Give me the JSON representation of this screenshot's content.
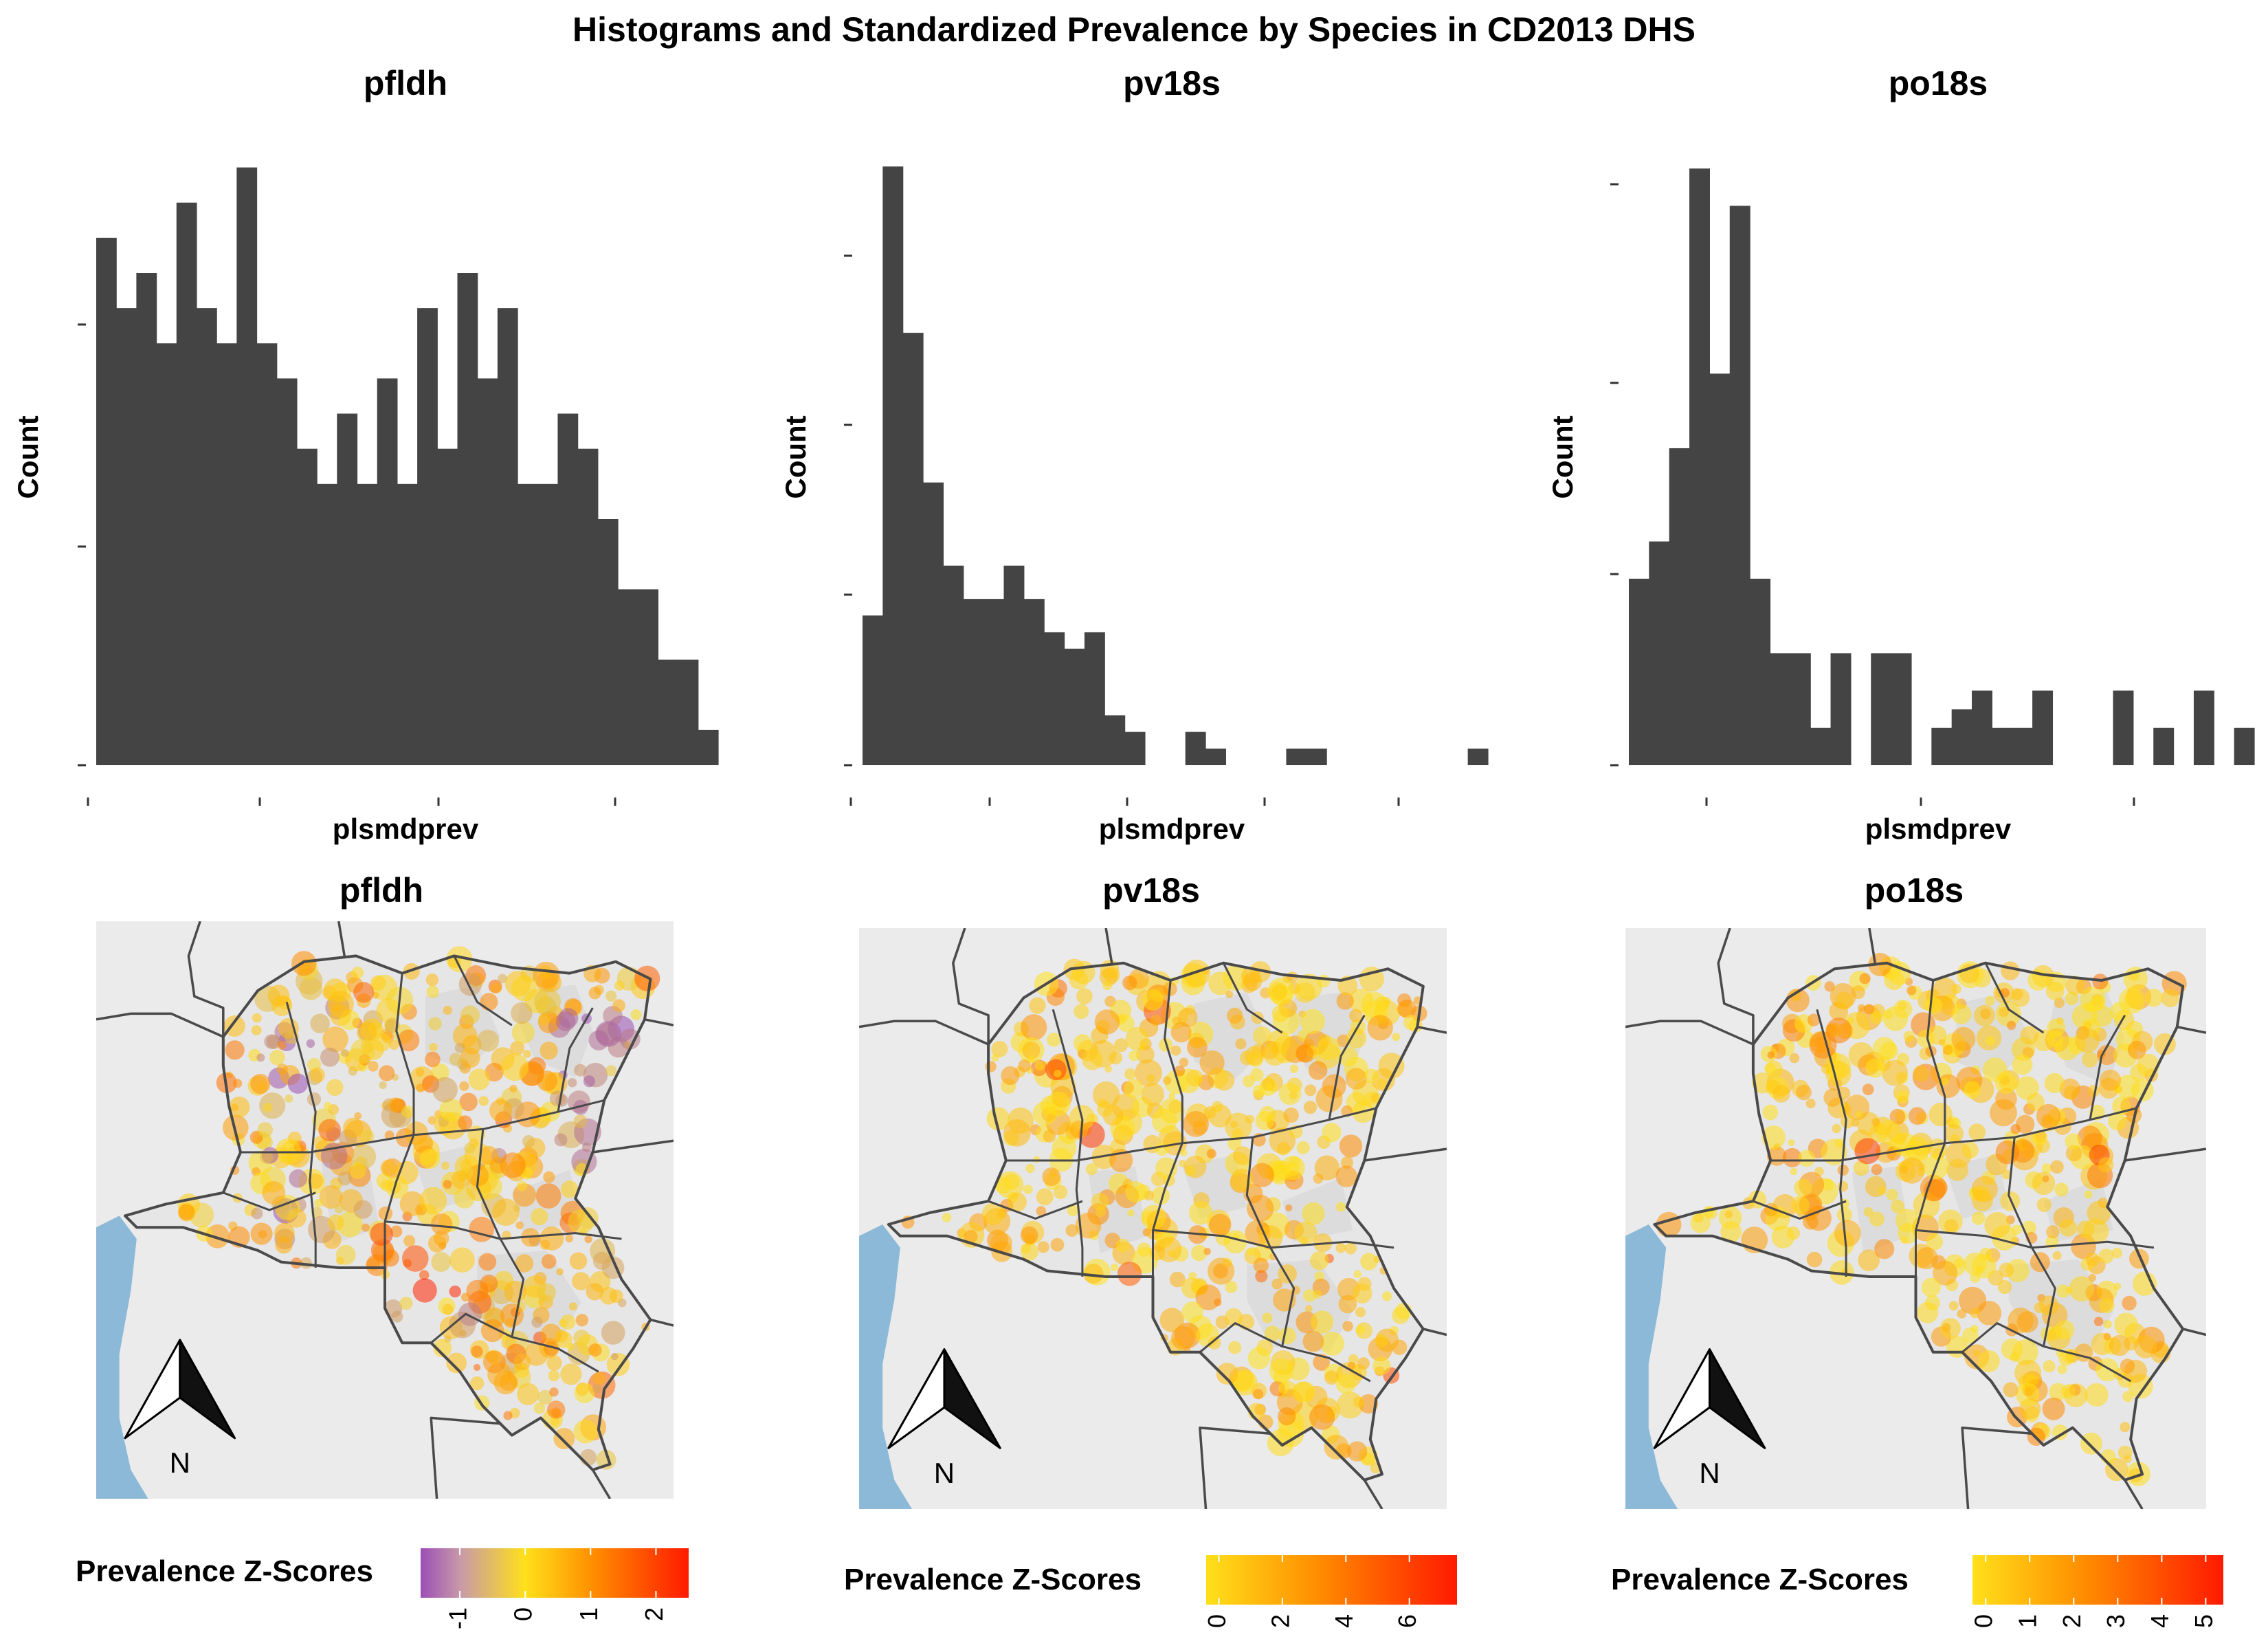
{
  "title": "Histograms and Standardized Prevalence by Species in CD2013 DHS",
  "north_label": "N",
  "colors": {
    "bar": "#444444",
    "ocean": "#8db9d8",
    "background": "#ebebeb",
    "province_fill": "#dcdcdc",
    "border": "#4a4a4a",
    "z_low": "#9b4fb5",
    "z_mid": "#ffe01a",
    "z_high": "#ff1a00"
  },
  "chart_data": [
    {
      "type": "bar",
      "title": "pfldh",
      "xlabel": "plsmdprev",
      "ylabel": "Count",
      "values": [
        15,
        13,
        14,
        12,
        16,
        13,
        12,
        17,
        12,
        11,
        9,
        8,
        10,
        8,
        11,
        8,
        13,
        9,
        14,
        11,
        13,
        8,
        8,
        10,
        9,
        7,
        5,
        5,
        3,
        3,
        1
      ],
      "ylim": [
        0,
        17.5
      ],
      "x_tick_count": 4,
      "y_tick_count": 3,
      "grid": false
    },
    {
      "type": "bar",
      "title": "pv18s",
      "xlabel": "plsmdprev",
      "ylabel": "Count",
      "values": [
        9,
        36,
        26,
        17,
        12,
        10,
        10,
        12,
        10,
        8,
        7,
        8,
        3,
        2,
        0,
        0,
        2,
        1,
        0,
        0,
        0,
        1,
        1,
        0,
        0,
        0,
        0,
        0,
        0,
        0,
        1
      ],
      "ylim": [
        0,
        37
      ],
      "x_tick_count": 5,
      "y_tick_count": 4,
      "grid": false
    },
    {
      "type": "bar",
      "title": "po18s",
      "xlabel": "plsmdprev",
      "ylabel": "Count",
      "values": [
        10,
        12,
        17,
        32,
        21,
        30,
        10,
        6,
        6,
        2,
        6,
        0,
        6,
        6,
        0,
        2,
        3,
        4,
        2,
        2,
        4,
        0,
        0,
        0,
        4,
        0,
        2,
        0,
        4,
        0,
        2
      ],
      "ylim": [
        0,
        33
      ],
      "x_tick_count": 3,
      "y_tick_count": 4,
      "grid": false
    },
    {
      "type": "map",
      "title": "pfldh",
      "legend_title": "Prevalence Z-Scores",
      "legend_ticks": [
        "-1",
        "0",
        "1",
        "2"
      ],
      "color_range": [
        -1.6,
        2.5
      ],
      "legend_placement": "bottom"
    },
    {
      "type": "map",
      "title": "pv18s",
      "legend_title": "Prevalence Z-Scores",
      "legend_ticks": [
        "0",
        "2",
        "4",
        "6"
      ],
      "color_range": [
        -0.4,
        7.5
      ],
      "legend_placement": "bottom"
    },
    {
      "type": "map",
      "title": "po18s",
      "legend_title": "Prevalence Z-Scores",
      "legend_ticks": [
        "0",
        "1",
        "2",
        "3",
        "4",
        "5"
      ],
      "color_range": [
        -0.3,
        5.4
      ],
      "legend_placement": "bottom"
    }
  ]
}
